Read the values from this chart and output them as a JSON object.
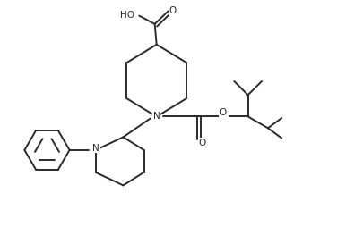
{
  "background_color": "#ffffff",
  "line_color": "#2a2a2a",
  "line_width": 1.4,
  "figsize": [
    4.06,
    2.54
  ],
  "dpi": 100,
  "xlim": [
    0,
    10
  ],
  "ylim": [
    0,
    6.27
  ]
}
